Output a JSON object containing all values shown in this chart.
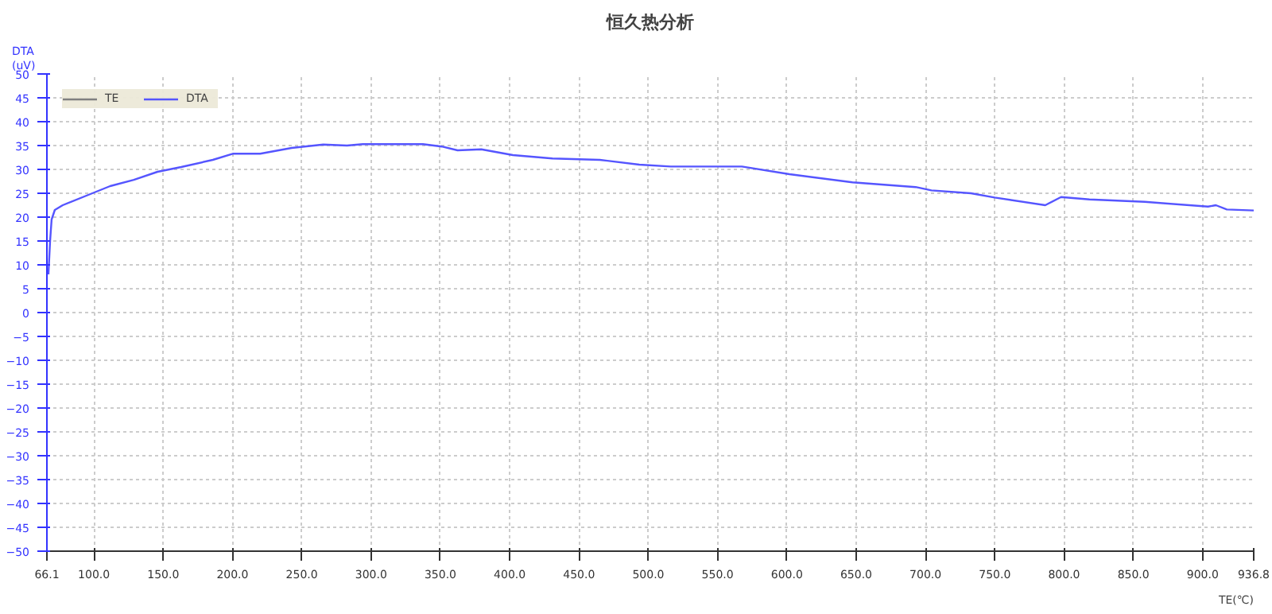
{
  "chart_data": {
    "type": "line",
    "title": "恒久热分析",
    "xlabel": "TE(℃)",
    "ylabel": "DTA\n(uV)",
    "xlim": [
      66.1,
      936.8
    ],
    "xticks": [
      {
        "value": 66.1,
        "label": "66.1"
      },
      {
        "value": 100,
        "label": "100.0"
      },
      {
        "value": 150,
        "label": "150.0"
      },
      {
        "value": 200,
        "label": "200.0"
      },
      {
        "value": 250,
        "label": "250.0"
      },
      {
        "value": 300,
        "label": "300.0"
      },
      {
        "value": 350,
        "label": "350.0"
      },
      {
        "value": 400,
        "label": "400.0"
      },
      {
        "value": 450,
        "label": "450.0"
      },
      {
        "value": 500,
        "label": "500.0"
      },
      {
        "value": 550,
        "label": "550.0"
      },
      {
        "value": 600,
        "label": "600.0"
      },
      {
        "value": 650,
        "label": "650.0"
      },
      {
        "value": 700,
        "label": "700.0"
      },
      {
        "value": 750,
        "label": "750.0"
      },
      {
        "value": 800,
        "label": "800.0"
      },
      {
        "value": 850,
        "label": "850.0"
      },
      {
        "value": 900,
        "label": "900.0"
      },
      {
        "value": 936.8,
        "label": "936.8"
      }
    ],
    "ylim": [
      -50,
      50
    ],
    "yticks": [
      -50,
      -45,
      -40,
      -35,
      -30,
      -25,
      -20,
      -15,
      -10,
      -5,
      0,
      5,
      10,
      15,
      20,
      25,
      30,
      35,
      40,
      45,
      50
    ],
    "grid": true,
    "legend": "top left",
    "line_style": "solid",
    "series": [
      {
        "name": "TE",
        "color": "#808080"
      },
      {
        "name": "DTA",
        "color": "#5555ff",
        "x": [
          67.2,
          68.4,
          69.5,
          71.8,
          77.5,
          94.6,
          111.7,
          128.8,
          145.9,
          163,
          185.8,
          200.6,
          220,
          242.7,
          265.5,
          282.6,
          294,
          337.4,
          350.9,
          362.4,
          379.5,
          402.3,
          430.8,
          465,
          493.5,
          516.2,
          567.5,
          601.8,
          647.3,
          692.9,
          704.3,
          732.8,
          749.9,
          786.4,
          797.8,
          818.3,
          858.2,
          903.8,
          909.5,
          917.4,
          936.8
        ],
        "values": [
          8,
          15,
          19.5,
          21.5,
          22.5,
          24.5,
          26.5,
          27.8,
          29.5,
          30.5,
          32,
          33.3,
          33.3,
          34.5,
          35.2,
          35,
          35.3,
          35.3,
          34.8,
          34,
          34.2,
          33,
          32.3,
          32,
          31,
          30.6,
          30.6,
          29,
          27.3,
          26.3,
          25.6,
          25,
          24.1,
          22.5,
          24.2,
          23.7,
          23.2,
          22.2,
          22.5,
          21.6,
          21.4
        ]
      }
    ]
  }
}
